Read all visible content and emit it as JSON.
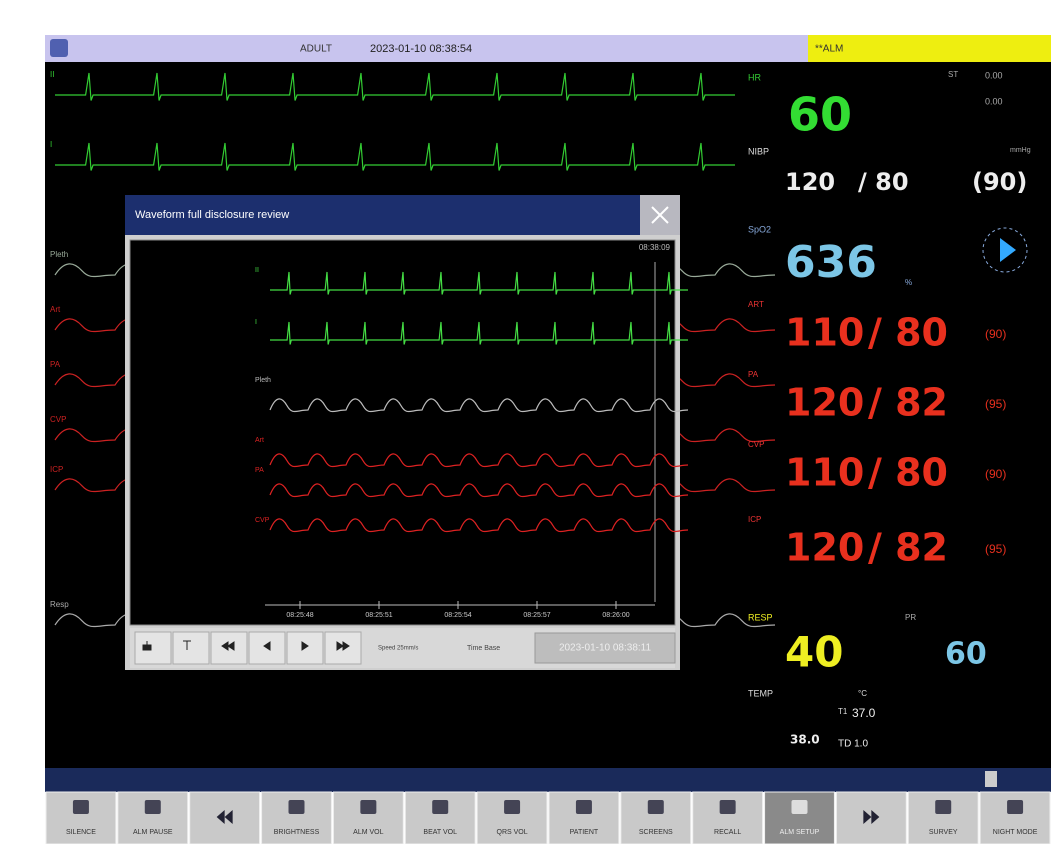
{
  "top_bar": {
    "patient_type": "ADULT",
    "datetime": "2023-01-10 08:38:54",
    "alarm": "**ALM"
  },
  "waveform_labels": [
    "II",
    "I",
    "Pleth",
    "Art",
    "PA",
    "CVP",
    "ICP",
    "Resp"
  ],
  "params": {
    "hr": {
      "label": "HR",
      "value": "60",
      "st_label": "ST",
      "st1": "0.00",
      "st2": "0.00"
    },
    "nibp": {
      "label": "NIBP",
      "unit": "mmHg",
      "sys": "120",
      "dia": "/ 80",
      "mean": "(90)"
    },
    "spo2": {
      "label": "SpO2",
      "value": "636",
      "unit": "%"
    },
    "ibp": [
      {
        "label": "ART",
        "sys": "110",
        "dia": "/ 80",
        "mean": "(90)"
      },
      {
        "label": "PA",
        "sys": "120",
        "dia": "/ 82",
        "mean": "(95)"
      },
      {
        "label": "CVP",
        "sys": "110",
        "dia": "/ 80",
        "mean": "(90)"
      },
      {
        "label": "ICP",
        "sys": "120",
        "dia": "/ 82",
        "mean": "(95)"
      }
    ],
    "resp": {
      "label": "RESP",
      "value": "40",
      "pr_label": "PR",
      "pr": "60"
    },
    "temp": {
      "label": "TEMP",
      "unit": "°C",
      "t1_label": "T1",
      "t1": "37.0",
      "t2": "38.0",
      "td": "TD 1.0"
    }
  },
  "dialog": {
    "title": "Waveform full disclosure review",
    "timestamp": "08:38:09",
    "labels": [
      "II",
      "I",
      "Pleth",
      "Art",
      "PA",
      "CVP"
    ],
    "times": [
      "08:25:48",
      "08:25:51",
      "08:25:54",
      "08:25:57",
      "08:26:00"
    ],
    "speed": "Speed 25mm/s",
    "time_base_label": "Time Base",
    "time_base": "2023-01-10 08:38:11"
  },
  "buttons": [
    "SILENCE",
    "ALM PAUSE",
    "BRIGHTNESS",
    "ALM VOL",
    "BEAT VOL",
    "QRS VOL",
    "PATIENT",
    "SCREENS",
    "RECALL",
    "ALM SETUP",
    "SURVEY",
    "NIGHT MODE"
  ]
}
